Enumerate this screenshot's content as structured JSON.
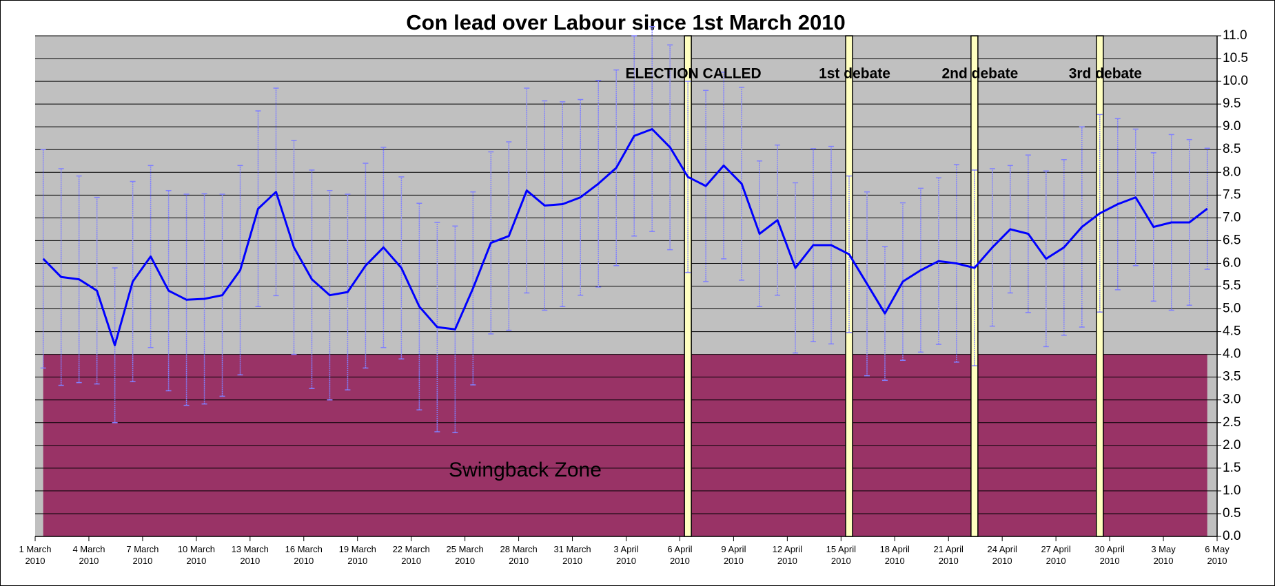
{
  "chart_data": {
    "type": "line",
    "title": "Con lead over Labour since 1st March 2010",
    "xticks": [
      "1 March 2010",
      "4 March 2010",
      "7 March 2010",
      "10 March 2010",
      "13 March 2010",
      "16 March 2010",
      "19 March 2010",
      "22 March 2010",
      "25 March 2010",
      "28 March 2010",
      "31 March 2010",
      "3 April 2010",
      "6 April 2010",
      "9 April 2010",
      "12 April 2010",
      "15 April 2010",
      "18 April 2010",
      "21 April 2010",
      "24 April 2010",
      "27 April 2010",
      "30 April 2010",
      "3 May 2010",
      "6 May 2010"
    ],
    "series": [
      {
        "color": "#0000ff",
        "error_color": "#8080ff",
        "values": [
          6.1,
          5.7,
          5.65,
          5.4,
          4.2,
          5.6,
          6.15,
          5.4,
          5.2,
          5.22,
          5.3,
          5.85,
          7.2,
          7.57,
          6.35,
          5.65,
          5.3,
          5.37,
          5.95,
          6.35,
          5.9,
          5.05,
          4.6,
          4.55,
          5.45,
          6.45,
          6.6,
          7.6,
          7.27,
          7.3,
          7.45,
          7.75,
          8.1,
          8.8,
          8.95,
          8.55,
          7.9,
          7.7,
          8.15,
          7.75,
          6.65,
          6.95,
          5.9,
          6.4,
          6.4,
          6.2,
          5.55,
          4.9,
          5.6,
          5.85,
          6.05,
          6.0,
          5.9,
          6.35,
          6.75,
          6.65,
          6.1,
          6.35,
          6.8,
          7.1,
          7.3,
          7.45,
          6.8,
          6.9,
          6.9,
          7.2
        ],
        "errors": [
          2.4,
          2.38,
          2.27,
          2.05,
          1.7,
          2.2,
          2.0,
          2.2,
          2.32,
          2.31,
          2.22,
          2.3,
          2.15,
          2.28,
          2.35,
          2.4,
          2.3,
          2.15,
          2.25,
          2.2,
          2.0,
          2.27,
          2.3,
          2.27,
          2.12,
          2.0,
          2.07,
          2.25,
          2.3,
          2.25,
          2.15,
          2.27,
          2.15,
          2.2,
          2.25,
          2.25,
          2.1,
          2.1,
          2.05,
          2.12,
          1.6,
          1.65,
          1.87,
          2.12,
          2.17,
          1.72,
          2.02,
          1.47,
          1.73,
          1.8,
          1.83,
          2.17,
          2.15,
          1.73,
          1.4,
          1.73,
          1.93,
          1.93,
          2.2,
          2.17,
          1.88,
          1.5,
          1.63,
          1.93,
          1.82,
          1.33
        ]
      }
    ],
    "events": [
      {
        "index": 36,
        "label": "ELECTION CALLED"
      },
      {
        "index": 45,
        "label": "1st debate"
      },
      {
        "index": 52,
        "label": "2nd debate"
      },
      {
        "index": 59,
        "label": "3rd debate"
      }
    ],
    "zone": {
      "label": "Swingback Zone",
      "ymin": 0,
      "ymax": 4,
      "color": "#993366"
    },
    "ylim": [
      0,
      11
    ],
    "yticks": [
      {
        "value": 0,
        "label": "0.0"
      },
      {
        "value": 0.5,
        "label": "0.5"
      },
      {
        "value": 1,
        "label": "1.0"
      },
      {
        "value": 1.5,
        "label": "1.5"
      },
      {
        "value": 2,
        "label": "2.0"
      },
      {
        "value": 2.5,
        "label": "2.5"
      },
      {
        "value": 3,
        "label": "3.0"
      },
      {
        "value": 3.5,
        "label": "3.5"
      },
      {
        "value": 4,
        "label": "4.0"
      },
      {
        "value": 4.5,
        "label": "4.5"
      },
      {
        "value": 5,
        "label": "5.0"
      },
      {
        "value": 5.5,
        "label": "5.5"
      },
      {
        "value": 6,
        "label": "6.0"
      },
      {
        "value": 6.5,
        "label": "6.5"
      },
      {
        "value": 7,
        "label": "7.0"
      },
      {
        "value": 7.5,
        "label": "7.5"
      },
      {
        "value": 8,
        "label": "8.0"
      },
      {
        "value": 8.5,
        "label": "8.5"
      },
      {
        "value": 9,
        "label": "9.0"
      },
      {
        "value": 9.5,
        "label": "9.5"
      },
      {
        "value": 10,
        "label": "10.0"
      },
      {
        "value": 10.5,
        "label": "10.5"
      },
      {
        "value": 11,
        "label": "11.0"
      }
    ],
    "grid": true,
    "yaxis_side": "right"
  }
}
